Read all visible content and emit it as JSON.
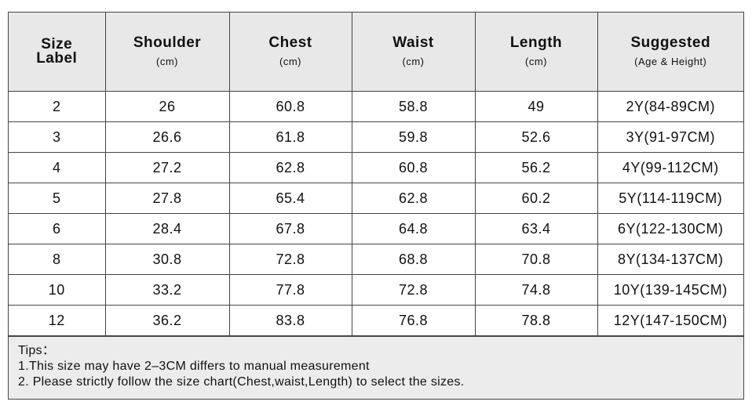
{
  "table": {
    "header": [
      {
        "title": "Size Label"
      },
      {
        "title": "Shoulder",
        "unit": "(cm)"
      },
      {
        "title": "Chest",
        "unit": "(cm)"
      },
      {
        "title": "Waist",
        "unit": "(cm)"
      },
      {
        "title": "Length",
        "unit": "(cm)"
      },
      {
        "title": "Suggested",
        "unit": "(Age & Height)"
      }
    ],
    "rows": [
      [
        "2",
        "26",
        "60.8",
        "58.8",
        "49",
        "2Y(84-89CM)"
      ],
      [
        "3",
        "26.6",
        "61.8",
        "59.8",
        "52.6",
        "3Y(91-97CM)"
      ],
      [
        "4",
        "27.2",
        "62.8",
        "60.8",
        "56.2",
        "4Y(99-112CM)"
      ],
      [
        "5",
        "27.8",
        "65.4",
        "62.8",
        "60.2",
        "5Y(114-119CM)"
      ],
      [
        "6",
        "28.4",
        "67.8",
        "64.8",
        "63.4",
        "6Y(122-130CM)"
      ],
      [
        "8",
        "30.8",
        "72.8",
        "68.8",
        "70.8",
        "8Y(134-137CM)"
      ],
      [
        "10",
        "33.2",
        "77.8",
        "72.8",
        "74.8",
        "10Y(139-145CM)"
      ],
      [
        "12",
        "36.2",
        "83.8",
        "76.8",
        "78.8",
        "12Y(147-150CM)"
      ]
    ]
  },
  "tips": {
    "title": "Tips：",
    "lines": [
      "1.This size may have 2–3CM differs to manual measurement",
      "2. Please strictly follow the size chart(Chest,waist,Length) to select the sizes."
    ]
  }
}
